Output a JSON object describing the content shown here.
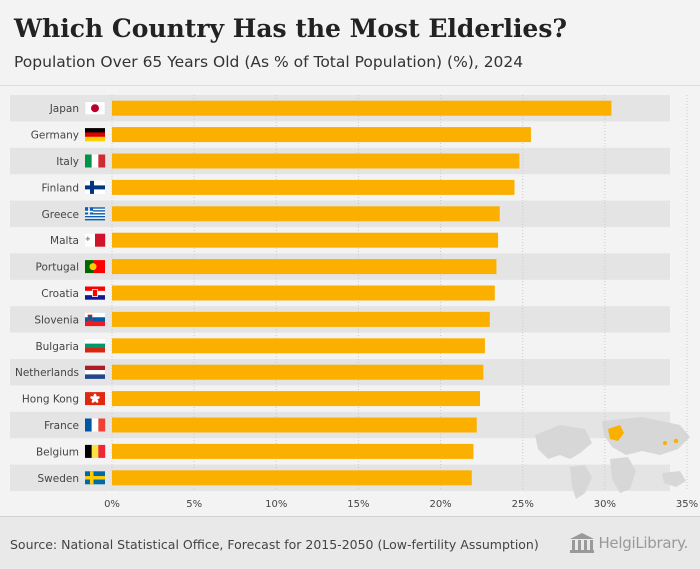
{
  "header": {
    "title": "Which Country Has the Most Elderlies?",
    "subtitle": "Population Over 65 Years Old (As % of Total Population) (%), 2024"
  },
  "footer": {
    "source": "Source: National Statistical Office, Forecast for 2015-2050 (Low-fertility Assumption)",
    "brand": "HelgiLibrary."
  },
  "colors": {
    "bar": "#fbb000",
    "stripe": "#e4e4e4",
    "grid": "#cccccc"
  },
  "chart_data": {
    "type": "bar",
    "orientation": "horizontal",
    "title": "Which Country Has the Most Elderlies?",
    "subtitle": "Population Over 65 Years Old (As % of Total Population) (%), 2024",
    "categories": [
      "Japan",
      "Germany",
      "Italy",
      "Finland",
      "Greece",
      "Malta",
      "Portugal",
      "Croatia",
      "Slovenia",
      "Bulgaria",
      "Netherlands",
      "Hong Kong",
      "France",
      "Belgium",
      "Sweden"
    ],
    "flag_icons": [
      "japan-flag-icon",
      "germany-flag-icon",
      "italy-flag-icon",
      "finland-flag-icon",
      "greece-flag-icon",
      "malta-flag-icon",
      "portugal-flag-icon",
      "croatia-flag-icon",
      "slovenia-flag-icon",
      "bulgaria-flag-icon",
      "netherlands-flag-icon",
      "hong-kong-flag-icon",
      "france-flag-icon",
      "belgium-flag-icon",
      "sweden-flag-icon"
    ],
    "values": [
      30.4,
      25.5,
      24.8,
      24.5,
      23.6,
      23.5,
      23.4,
      23.3,
      23.0,
      22.7,
      22.6,
      22.4,
      22.2,
      22.0,
      21.9
    ],
    "xlim": [
      0,
      35
    ],
    "ticks": [
      0,
      5,
      10,
      15,
      20,
      25,
      30,
      35
    ],
    "tick_labels": [
      "0%",
      "5%",
      "10%",
      "15%",
      "20%",
      "25%",
      "30%",
      "35%"
    ],
    "grid": true
  }
}
